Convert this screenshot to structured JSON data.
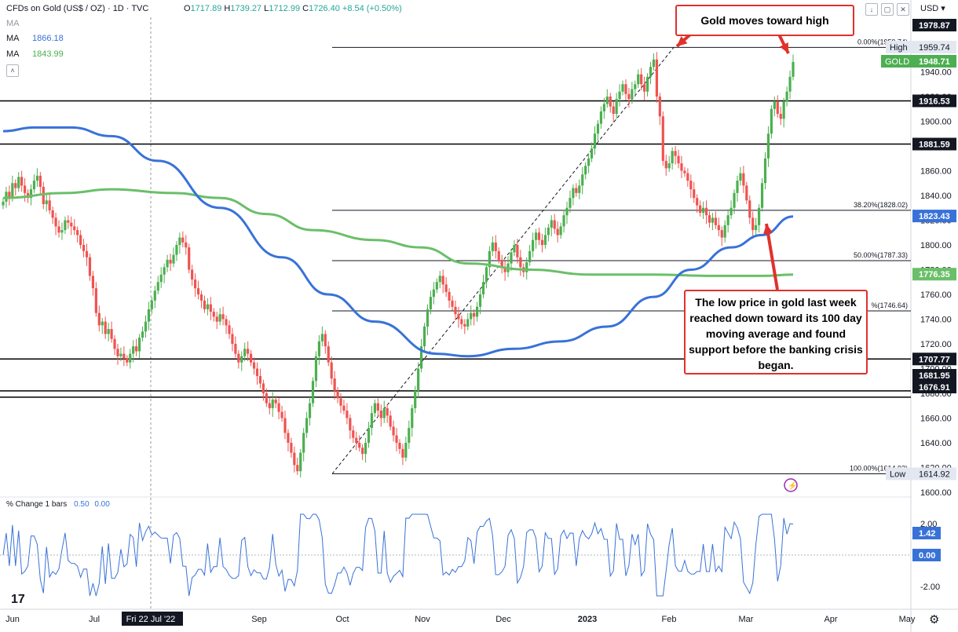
{
  "header": {
    "symbol": "CFDs on Gold (US$ / OZ) · 1D · TVC",
    "ohlc": [
      {
        "k": "O",
        "v": "1717.89"
      },
      {
        "k": "H",
        "v": "1739.27"
      },
      {
        "k": "L",
        "v": "1712.99"
      },
      {
        "k": "C",
        "v": "1726.40"
      }
    ],
    "change": "+8.54 (+0.50%)",
    "currency": "USD",
    "ma_fast_label": "MA",
    "ma_fast_value": "1866.18",
    "ma_slow_label": "MA",
    "ma_slow_value": "1843.99",
    "collapse_icon": "chevron-icon",
    "indicator_label": "% Change 1 bars",
    "indicator_values": [
      "0.50",
      "0.00"
    ]
  },
  "colors": {
    "up": "#26a69a",
    "up_bar": "#4caf50",
    "down": "#ef5350",
    "ma_fast": "#3872d8",
    "ma_slow": "#6abf69",
    "annotation": "#e0312b",
    "fib": "#787b86"
  },
  "annotations": {
    "top_callout": "Gold moves toward high",
    "bottom_callout": "The low price in gold last week reached down toward its 100 day moving average and found support before the banking crisis began."
  },
  "chart_data": {
    "type": "candlestick",
    "title": "CFDs on Gold (US$ / OZ) · 1D · TVC",
    "x_ticks": [
      "Jun",
      "Jul",
      "Fri 22 Jul '22",
      "Sep",
      "Oct",
      "Nov",
      "Dec",
      "2023",
      "Feb",
      "Mar",
      "Apr",
      "May"
    ],
    "y_ticks": [
      1600,
      1620,
      1640,
      1660,
      1680,
      1700,
      1720,
      1740,
      1760,
      1780,
      1800,
      1820,
      1840,
      1860,
      1880,
      1900,
      1920,
      1940,
      1960
    ],
    "ylim": [
      1585,
      1983
    ],
    "price_markers": [
      {
        "label": "1978.87",
        "style": "dark"
      },
      {
        "label": "1959.74",
        "style": "high",
        "tag": "High"
      },
      {
        "label": "1948.71",
        "style": "green",
        "tag": "GOLD"
      },
      {
        "label": "1916.53",
        "style": "dark"
      },
      {
        "label": "1881.59",
        "style": "dark"
      },
      {
        "label": "1823.43",
        "style": "blue"
      },
      {
        "label": "1776.35",
        "style": "lgreen"
      },
      {
        "label": "1707.77",
        "style": "dark"
      },
      {
        "label": "1681.95",
        "style": "dark"
      },
      {
        "label": "1676.91",
        "style": "dark"
      },
      {
        "label": "1614.92",
        "style": "low",
        "tag": "Low"
      }
    ],
    "horizontal_levels": [
      1916.53,
      1881.59,
      1707.77,
      1681.95,
      1676.91
    ],
    "fib_levels": [
      {
        "label": "0.00%(1959.74)",
        "value": 1959.74
      },
      {
        "label": "38.20%(1828.02)",
        "value": 1828.02
      },
      {
        "label": "50.00%(1787.33)",
        "value": 1787.33
      },
      {
        "label": "%(1746.64)",
        "value": 1746.64
      },
      {
        "label": "100.00%(1614.92)",
        "value": 1614.92
      }
    ],
    "candles": [
      1835,
      1843,
      1839,
      1850,
      1846,
      1855,
      1848,
      1842,
      1838,
      1845,
      1852,
      1856,
      1847,
      1833,
      1836,
      1828,
      1822,
      1815,
      1810,
      1812,
      1820,
      1818,
      1815,
      1812,
      1808,
      1800,
      1795,
      1790,
      1775,
      1765,
      1745,
      1735,
      1738,
      1728,
      1732,
      1724,
      1716,
      1710,
      1712,
      1708,
      1705,
      1712,
      1718,
      1714,
      1725,
      1730,
      1738,
      1748,
      1755,
      1763,
      1770,
      1776,
      1782,
      1788,
      1785,
      1792,
      1800,
      1806,
      1802,
      1798,
      1780,
      1772,
      1765,
      1760,
      1755,
      1748,
      1752,
      1746,
      1742,
      1738,
      1744,
      1740,
      1735,
      1728,
      1720,
      1712,
      1705,
      1710,
      1716,
      1712,
      1705,
      1700,
      1694,
      1688,
      1680,
      1672,
      1668,
      1675,
      1672,
      1665,
      1660,
      1648,
      1640,
      1632,
      1622,
      1617,
      1632,
      1648,
      1660,
      1672,
      1690,
      1710,
      1722,
      1728,
      1718,
      1705,
      1692,
      1682,
      1676,
      1670,
      1666,
      1660,
      1650,
      1644,
      1640,
      1636,
      1631,
      1640,
      1652,
      1664,
      1672,
      1666,
      1660,
      1668,
      1662,
      1653,
      1646,
      1640,
      1635,
      1628,
      1640,
      1652,
      1668,
      1682,
      1700,
      1718,
      1734,
      1748,
      1758,
      1764,
      1770,
      1775,
      1768,
      1762,
      1755,
      1750,
      1744,
      1740,
      1736,
      1734,
      1740,
      1745,
      1742,
      1750,
      1760,
      1770,
      1782,
      1795,
      1802,
      1795,
      1788,
      1782,
      1778,
      1785,
      1794,
      1800,
      1790,
      1782,
      1778,
      1786,
      1795,
      1804,
      1810,
      1804,
      1800,
      1808,
      1814,
      1820,
      1813,
      1808,
      1815,
      1824,
      1830,
      1838,
      1846,
      1842,
      1848,
      1857,
      1864,
      1870,
      1878,
      1890,
      1898,
      1908,
      1914,
      1920,
      1912,
      1906,
      1918,
      1924,
      1930,
      1922,
      1918,
      1926,
      1930,
      1938,
      1930,
      1924,
      1936,
      1944,
      1950,
      1920,
      1904,
      1868,
      1862,
      1866,
      1876,
      1872,
      1866,
      1860,
      1858,
      1852,
      1845,
      1838,
      1832,
      1826,
      1830,
      1824,
      1818,
      1822,
      1816,
      1812,
      1806,
      1816,
      1824,
      1830,
      1842,
      1852,
      1858,
      1848,
      1836,
      1822,
      1812,
      1816,
      1830,
      1850,
      1870,
      1890,
      1910,
      1916,
      1906,
      1902,
      1916,
      1924,
      1936,
      1948
    ],
    "ma_fast_sample": [
      {
        "i": 0,
        "v": 1892
      },
      {
        "i": 10,
        "v": 1895
      },
      {
        "i": 22,
        "v": 1895
      },
      {
        "i": 35,
        "v": 1888
      },
      {
        "i": 50,
        "v": 1868
      },
      {
        "i": 70,
        "v": 1830
      },
      {
        "i": 90,
        "v": 1790
      },
      {
        "i": 105,
        "v": 1760
      },
      {
        "i": 120,
        "v": 1738
      },
      {
        "i": 140,
        "v": 1712
      },
      {
        "i": 150,
        "v": 1710
      },
      {
        "i": 165,
        "v": 1716
      },
      {
        "i": 180,
        "v": 1722
      },
      {
        "i": 195,
        "v": 1734
      },
      {
        "i": 210,
        "v": 1758
      },
      {
        "i": 222,
        "v": 1780
      },
      {
        "i": 235,
        "v": 1798
      },
      {
        "i": 245,
        "v": 1808
      },
      {
        "i": 255,
        "v": 1823
      }
    ],
    "ma_slow_sample": [
      {
        "i": 0,
        "v": 1838
      },
      {
        "i": 20,
        "v": 1842
      },
      {
        "i": 35,
        "v": 1845
      },
      {
        "i": 55,
        "v": 1842
      },
      {
        "i": 70,
        "v": 1838
      },
      {
        "i": 85,
        "v": 1825
      },
      {
        "i": 100,
        "v": 1812
      },
      {
        "i": 120,
        "v": 1804
      },
      {
        "i": 135,
        "v": 1798
      },
      {
        "i": 150,
        "v": 1785
      },
      {
        "i": 170,
        "v": 1780
      },
      {
        "i": 190,
        "v": 1776
      },
      {
        "i": 210,
        "v": 1776
      },
      {
        "i": 230,
        "v": 1775
      },
      {
        "i": 245,
        "v": 1775
      },
      {
        "i": 255,
        "v": 1776
      }
    ],
    "indicator": {
      "name": "% Change 1 bars",
      "ylim": [
        -2.8,
        2.8
      ],
      "y_ticks": [
        "2.00",
        "-2.00"
      ],
      "last": "1.42",
      "zero": "0.00"
    }
  }
}
